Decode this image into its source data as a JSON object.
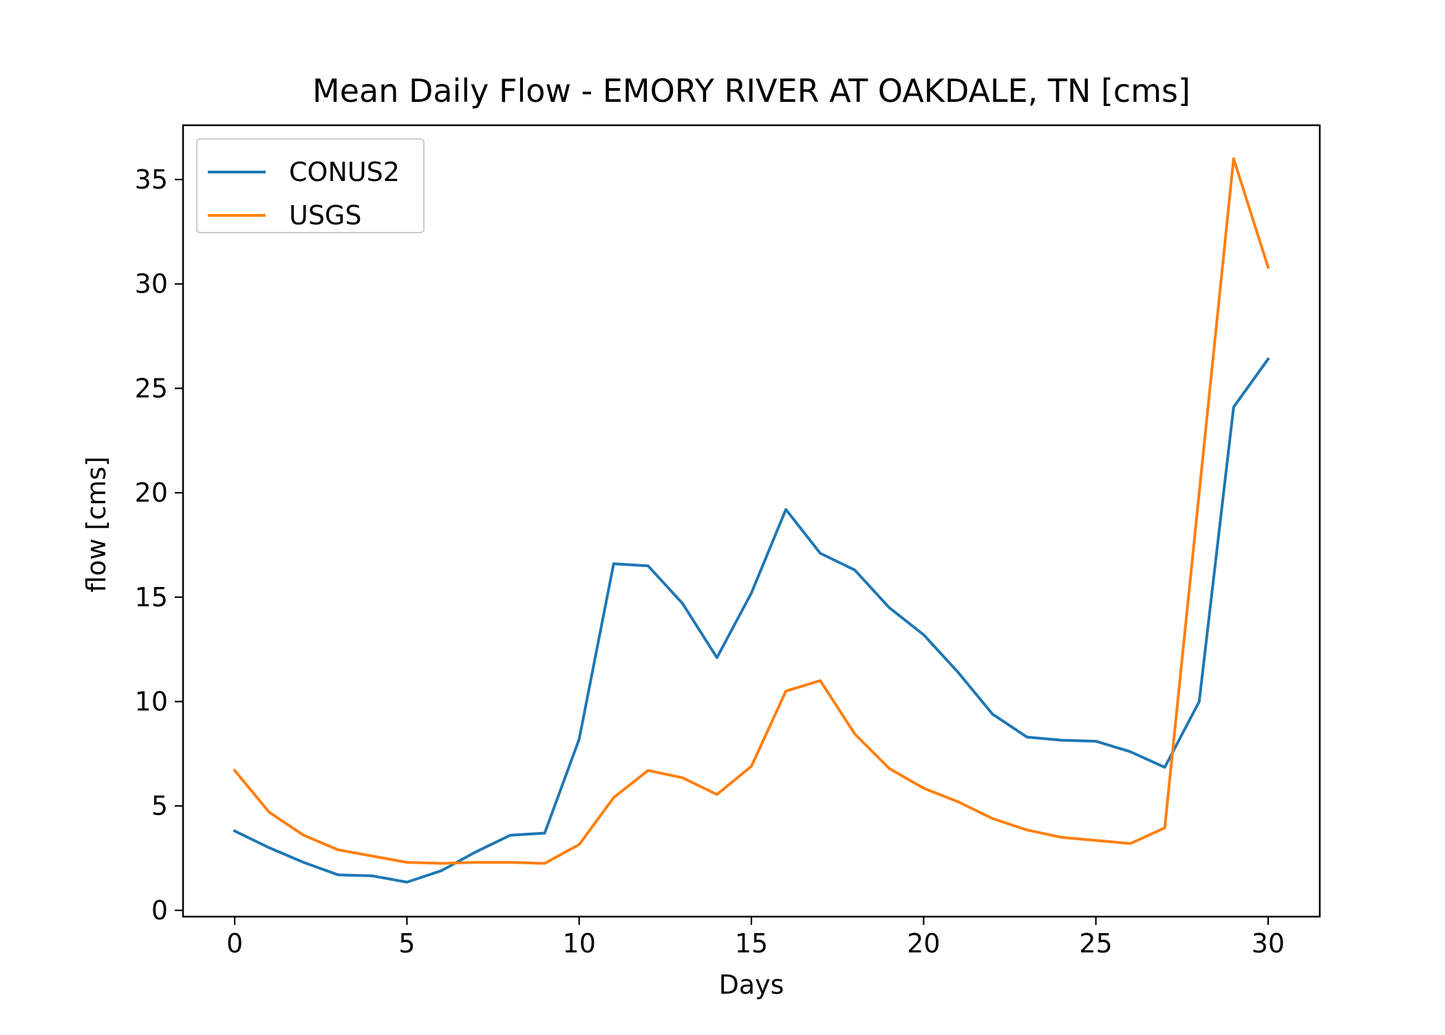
{
  "chart_data": {
    "type": "line",
    "title": "Mean Daily Flow - EMORY RIVER AT OAKDALE, TN [cms]",
    "xlabel": "Days",
    "ylabel": "flow [cms]",
    "xlim": [
      -1.5,
      31.5
    ],
    "ylim": [
      -0.3,
      37.6
    ],
    "xticks": [
      0,
      5,
      10,
      15,
      20,
      25,
      30
    ],
    "yticks": [
      0,
      5,
      10,
      15,
      20,
      25,
      30,
      35
    ],
    "grid": false,
    "legend_position": "top-left",
    "x": [
      0,
      1,
      2,
      3,
      4,
      5,
      6,
      7,
      8,
      9,
      10,
      11,
      12,
      13,
      14,
      15,
      16,
      17,
      18,
      19,
      20,
      21,
      22,
      23,
      24,
      25,
      26,
      27,
      28,
      29,
      30
    ],
    "series": [
      {
        "name": "CONUS2",
        "color": "#1f77b4",
        "values": [
          3.8,
          3.0,
          2.3,
          1.7,
          1.65,
          1.35,
          1.9,
          2.8,
          3.6,
          3.7,
          8.2,
          16.6,
          16.5,
          14.7,
          12.1,
          15.2,
          19.2,
          17.1,
          16.3,
          14.5,
          13.2,
          11.4,
          9.4,
          8.3,
          8.15,
          8.1,
          7.6,
          6.85,
          10.0,
          24.1,
          26.4
        ]
      },
      {
        "name": "USGS",
        "color": "#ff7f0e",
        "values": [
          6.7,
          4.7,
          3.6,
          2.9,
          2.6,
          2.3,
          2.25,
          2.3,
          2.3,
          2.25,
          3.15,
          5.4,
          6.7,
          6.35,
          5.55,
          6.9,
          10.5,
          11.0,
          8.45,
          6.8,
          5.85,
          5.2,
          4.4,
          3.85,
          3.5,
          3.35,
          3.2,
          3.95,
          20.0,
          36.0,
          30.8
        ]
      }
    ]
  }
}
